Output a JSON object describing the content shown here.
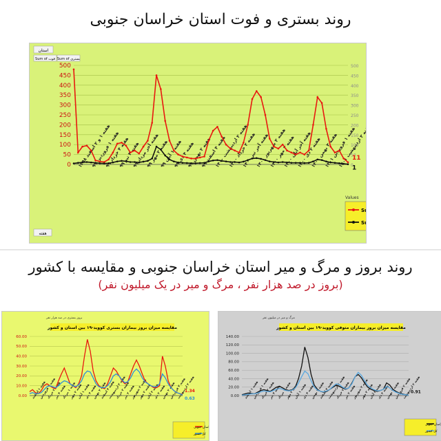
{
  "header": {
    "title": "روند بستری و فوت استان خراسان جنوبی"
  },
  "section2": {
    "title": "روند بروز و مرگ و میر استان خراسان جنوبی و مقایسه با کشور",
    "subtitle": "(بروز در صد هزار نفر ، مرگ و میر در یک میلیون نفر)"
  },
  "main_chart_ui": {
    "filter_label": "استان",
    "field_buttons": [
      "Sum of فوت",
      "Sum of بستری"
    ],
    "values_box_title": "Values",
    "week_button": "هفته",
    "end_label_hosp": "11",
    "end_label_death": "1",
    "colors": {
      "background": "#d9f279",
      "hospitalized": "#e8170f",
      "deaths": "#111111"
    }
  },
  "chart_data": [
    {
      "type": "line",
      "ylim": [
        0,
        500
      ],
      "yticks": [
        "0",
        "50",
        "100",
        "150",
        "200",
        "250",
        "300",
        "350",
        "400",
        "450",
        "500"
      ],
      "y2ticks": [
        "0",
        "50",
        "100",
        "150",
        "200",
        "250",
        "300",
        "350",
        "400",
        "450",
        "500"
      ],
      "x_tick_labels": [
        "هفته ۱ و ۲ اسفند ۱۳۹۸",
        "هفته ۱ فروردین ۹۹",
        "هفته ۴ خرداد ۹۹",
        "هفته ۴ تیر ۹۹",
        "هفته آخر مرداد ۹۹",
        "هفته ۲ مهر ۹۹",
        "هفته ۱ آبان ۹۹",
        "هفته ۴ دی ۹۹",
        "هفته ۲ بهمن ۹۹",
        "هفته ۴ اسفند ۹۹",
        "هفته ۲ اردیبهشت ۱۴۰۰",
        "هفته ۲ خرداد ۱۴۰۰",
        "هفته آخر تیر ۱۴۰۰",
        "هفته ۳ شهریور ۱۴۰۰",
        "هفته ۲ مهر ۱۴۰۰",
        "هفته آخر آبان ۱۴۰۰",
        "هفته ۲ دی ۱۴۰۰",
        "هفته ۳ بهمن ۱۴۰۰",
        "هفته ۱ فروردین ۱۴۰۱",
        "هفته ۳ اردیبهشت ۱۴۰۱"
      ],
      "series": [
        {
          "name": "Sum of بستری",
          "color": "#e8170f",
          "values": [
            480,
            60,
            90,
            95,
            70,
            20,
            15,
            12,
            25,
            60,
            105,
            110,
            95,
            60,
            70,
            55,
            90,
            120,
            210,
            450,
            380,
            220,
            120,
            70,
            50,
            40,
            35,
            30,
            30,
            35,
            40,
            120,
            170,
            190,
            140,
            100,
            80,
            70,
            60,
            110,
            200,
            330,
            370,
            340,
            250,
            130,
            90,
            80,
            100,
            70,
            60,
            50,
            60,
            50,
            70,
            200,
            340,
            310,
            180,
            90,
            60,
            70,
            30,
            11
          ]
        },
        {
          "name": "Sum of فوت",
          "color": "#111111",
          "values": [
            5,
            8,
            10,
            12,
            10,
            8,
            6,
            5,
            6,
            10,
            15,
            18,
            16,
            12,
            12,
            10,
            14,
            18,
            30,
            90,
            75,
            45,
            25,
            15,
            10,
            8,
            7,
            6,
            6,
            7,
            8,
            15,
            20,
            22,
            18,
            15,
            12,
            12,
            10,
            14,
            22,
            30,
            32,
            28,
            22,
            15,
            12,
            10,
            12,
            10,
            8,
            8,
            8,
            7,
            8,
            15,
            25,
            22,
            15,
            10,
            8,
            6,
            3,
            1
          ]
        }
      ]
    },
    {
      "type": "line",
      "title": "مقایسه میزان بروز بیماران بستری کووید-۱۹ بین استان و کشور",
      "corner_label": "بروز بستری در صد هزار نفر",
      "ylim": [
        0,
        60
      ],
      "yticks": [
        "0.00",
        "10.00",
        "20.00",
        "30.00",
        "40.00",
        "50.00",
        "60.00"
      ],
      "end_labels": [
        "1.34",
        "0.63"
      ],
      "legend": [
        "خراسان جنوبی",
        "کل کشور"
      ],
      "x_tick_labels": [
        "هفته ۱ اسفند",
        "هفته ۱ فروردین",
        "هفته ۲ خرداد",
        "هفته ۴ تیر",
        "هفته ۱ مرداد",
        "هفته ۲ مهر",
        "هفته ۱ آبان",
        "هفته ۴ دی",
        "هفته ۲ بهمن",
        "هفته ۴ اسفند",
        "هفته ۲ اردیبهشت",
        "هفته ۲ خرداد",
        "هفته ۲ تیر",
        "هفته ۲ شهریور",
        "هفته ۲ مهر",
        "هفته ۲ آبان",
        "هفته ۲ دی",
        "هفته ۲ بهمن",
        "هفته ۲ فروردین",
        "هفته ۲ اردیبهشت"
      ],
      "series": [
        {
          "name": "خراسان جنوبی",
          "color": "#e8170f",
          "values": [
            4,
            6,
            3,
            2,
            5,
            10,
            12,
            10,
            8,
            7,
            15,
            22,
            28,
            20,
            12,
            10,
            8,
            12,
            20,
            40,
            57,
            45,
            25,
            15,
            10,
            8,
            7,
            12,
            20,
            28,
            25,
            20,
            15,
            12,
            14,
            22,
            30,
            36,
            30,
            22,
            15,
            12,
            10,
            8,
            8,
            10,
            40,
            30,
            15,
            8,
            5,
            3,
            2,
            1.34
          ]
        },
        {
          "name": "کل کشور",
          "color": "#2d8fd8",
          "values": [
            2,
            3,
            2,
            2,
            3,
            6,
            9,
            10,
            9,
            8,
            10,
            13,
            15,
            14,
            12,
            10,
            9,
            11,
            15,
            22,
            25,
            24,
            18,
            12,
            9,
            8,
            8,
            10,
            14,
            20,
            22,
            20,
            16,
            13,
            14,
            18,
            24,
            27,
            24,
            18,
            14,
            12,
            10,
            9,
            9,
            12,
            22,
            18,
            12,
            8,
            5,
            3,
            2,
            0.63
          ]
        }
      ]
    },
    {
      "type": "line",
      "title": "مقایسه میزان بروز بیماران متوفی کووید-۱۹ بین استان و کشور",
      "corner_label": "مرگ و میر در میلیون نفر",
      "ylim": [
        0,
        140
      ],
      "yticks": [
        "0.00",
        "20.00",
        "40.00",
        "60.00",
        "80.00",
        "100.00",
        "120.00",
        "140.00"
      ],
      "end_labels": [
        "0.91"
      ],
      "legend": [
        "خراسان جنوبی",
        "کل کشور"
      ],
      "x_tick_labels": [
        "هفته ۱ اسفند",
        "هفته ۱ فروردین",
        "هفته ۲ خرداد",
        "هفته ۴ تیر",
        "هفته ۱ مرداد",
        "هفته ۲ مهر",
        "هفته ۱ آبان",
        "هفته ۴ دی",
        "هفته ۲ بهمن",
        "هفته ۴ اسفند",
        "هفته ۲ اردیبهشت",
        "هفته ۲ خرداد",
        "هفته ۲ تیر",
        "هفته ۲ شهریور",
        "هفته ۲ مهر",
        "هفته ۲ آبان",
        "هفته ۲ دی",
        "هفته ۲ بهمن",
        "هفته ۲ فروردین",
        "هفته ۲ اردیبهشت"
      ],
      "series": [
        {
          "name": "خراسان جنوبی",
          "color": "#111111",
          "values": [
            2,
            4,
            6,
            5,
            4,
            8,
            12,
            14,
            12,
            10,
            15,
            20,
            22,
            18,
            14,
            12,
            14,
            20,
            40,
            70,
            115,
            90,
            50,
            25,
            15,
            10,
            8,
            10,
            15,
            20,
            25,
            22,
            18,
            15,
            18,
            30,
            45,
            50,
            42,
            30,
            20,
            15,
            12,
            10,
            12,
            15,
            30,
            25,
            15,
            10,
            6,
            4,
            2,
            0.91
          ]
        },
        {
          "name": "کل کشور",
          "color": "#5aa8e0",
          "values": [
            1,
            2,
            3,
            4,
            4,
            6,
            9,
            11,
            10,
            9,
            12,
            15,
            17,
            15,
            12,
            11,
            13,
            18,
            30,
            45,
            58,
            52,
            35,
            20,
            13,
            10,
            9,
            11,
            15,
            22,
            28,
            26,
            20,
            16,
            18,
            28,
            45,
            55,
            48,
            35,
            24,
            18,
            14,
            11,
            12,
            15,
            22,
            18,
            12,
            8,
            5,
            3,
            2,
            1
          ]
        }
      ]
    }
  ]
}
